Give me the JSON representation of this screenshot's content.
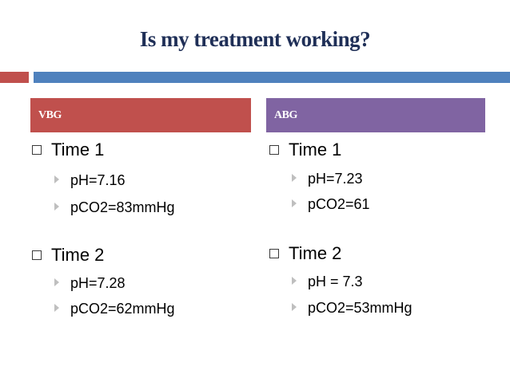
{
  "slide": {
    "title": "Is my treatment working?"
  },
  "left": {
    "header": "VBG",
    "groups": [
      {
        "label": "Time 1",
        "items": [
          "pH=7.16",
          "pCO2=83mmHg"
        ]
      },
      {
        "label": "Time 2",
        "items": [
          "pH=7.28",
          "pCO2=62mmHg"
        ]
      }
    ]
  },
  "right": {
    "header": "ABG",
    "groups": [
      {
        "label": "Time 1",
        "items": [
          "pH=7.23",
          "pCO2=61"
        ]
      },
      {
        "label": "Time 2",
        "items": [
          "pH = 7.3",
          "pCO2=53mmHg"
        ]
      }
    ]
  },
  "colors": {
    "title": "#1f2f57",
    "accent_red": "#c0504d",
    "accent_blue": "#4f81bd",
    "accent_purple": "#8064a2"
  }
}
